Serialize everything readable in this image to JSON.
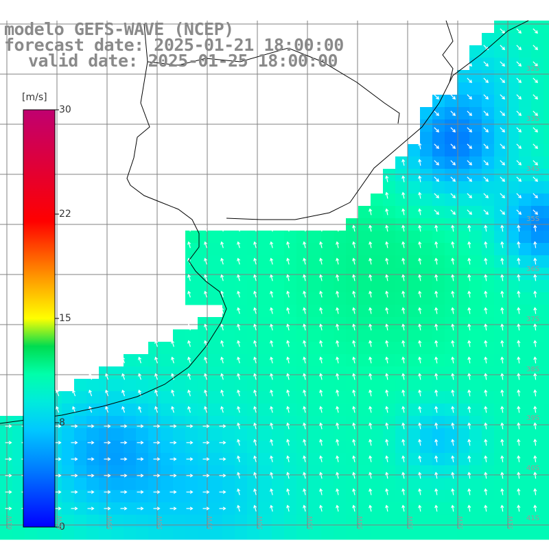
{
  "title": {
    "model": "modelo GEFS-WAVE (NCEP)",
    "forecast": "forecast date: 2025-01-21 18:00:00",
    "valid": "valid date: 2025-01-25 18:00:00"
  },
  "colorbar": {
    "unit": "[m/s]",
    "ticks": [
      "30",
      "22",
      "15",
      "8",
      "0"
    ],
    "min": 0,
    "max": 30,
    "colors": [
      "#0000ff",
      "#00c8ff",
      "#00ffc8",
      "#00cc00",
      "#ffff00",
      "#ff8000",
      "#ff0000",
      "#c00070"
    ]
  },
  "map": {
    "lat_labels": [
      "32S",
      "33S",
      "34S",
      "35S",
      "36S",
      "37S",
      "38S",
      "39S",
      "40S",
      "41S"
    ],
    "lon_labels": [
      "61W",
      "60W",
      "59W",
      "58W",
      "57W",
      "56W",
      "55W",
      "54W",
      "53W",
      "52W",
      "51W"
    ],
    "field": "wind speed and direction",
    "ocean_color": "#00e0e0",
    "land_color": "#ffffff",
    "coast_color": "#000000",
    "grid_color": "#808080",
    "arrow_color": "#ffffff"
  }
}
